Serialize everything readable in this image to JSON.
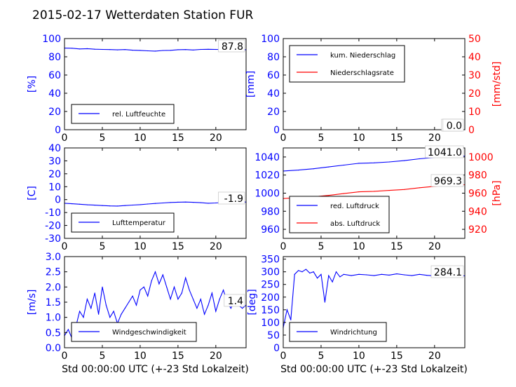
{
  "title": "2015-02-17 Wetterdaten Station FUR",
  "colors": {
    "left_axis": "#0000ff",
    "right_axis": "#ff0000",
    "line_blue": "#0000ff",
    "line_red": "#ff0000",
    "line_light": "#7777ff"
  },
  "chart_data": [
    {
      "id": "humidity",
      "type": "line",
      "ylabel": "[%]",
      "xlim": [
        0,
        24
      ],
      "ylim": [
        0,
        100
      ],
      "xticks": [
        0,
        5,
        10,
        15,
        20
      ],
      "yticks": [
        0,
        20,
        40,
        60,
        80,
        100
      ],
      "legend_position": "lower-left",
      "grid": false,
      "current_value": "87.8",
      "series": [
        {
          "name": "rel. Luftfeuchte",
          "color": "#0000ff",
          "x": [
            0,
            1,
            2,
            3,
            4,
            5,
            6,
            7,
            8,
            9,
            10,
            11,
            12,
            13,
            14,
            15,
            16,
            17,
            18,
            19,
            20,
            21,
            22,
            23,
            24
          ],
          "y": [
            89.5,
            89.4,
            88.6,
            88.9,
            88.3,
            88.1,
            87.9,
            87.6,
            87.9,
            87.2,
            87.0,
            86.5,
            86.2,
            86.9,
            87.1,
            87.8,
            87.9,
            87.5,
            88.1,
            88.2,
            88.1,
            87.9,
            87.8,
            87.8,
            87.8
          ]
        }
      ]
    },
    {
      "id": "precip",
      "type": "line",
      "ylabel": "[mm]",
      "y2label": "[mm/std]",
      "xlim": [
        0,
        24
      ],
      "ylim": [
        0,
        100
      ],
      "y2lim": [
        0,
        50
      ],
      "xticks": [
        0,
        5,
        10,
        15,
        20
      ],
      "yticks": [
        0,
        20,
        40,
        60,
        80,
        100
      ],
      "y2ticks": [
        0,
        10,
        20,
        30,
        40,
        50
      ],
      "legend_position": "upper-left",
      "grid": false,
      "current_value_left": "0.0",
      "current_value_right": "0.0",
      "series": [
        {
          "name": "kum. Niederschlag",
          "color": "#0000ff",
          "axis": "left",
          "x": [
            0,
            24
          ],
          "y": [
            0,
            0
          ]
        },
        {
          "name": "Niederschlagsrate",
          "color": "#ff0000",
          "axis": "right",
          "x": [
            0,
            24
          ],
          "y": [
            0,
            0
          ]
        }
      ]
    },
    {
      "id": "temperature",
      "type": "line",
      "ylabel": "[C]",
      "xlim": [
        0,
        24
      ],
      "ylim": [
        -30,
        40
      ],
      "xticks": [
        0,
        5,
        10,
        15,
        20
      ],
      "yticks": [
        -30,
        -20,
        -10,
        0,
        10,
        20,
        30,
        40
      ],
      "legend_position": "lower-left",
      "grid": false,
      "current_value": "-1.9",
      "series": [
        {
          "name": "Lufttemperatur",
          "color": "#0000ff",
          "x": [
            0,
            1,
            2,
            3,
            4,
            5,
            6,
            7,
            8,
            9,
            10,
            11,
            12,
            13,
            14,
            15,
            16,
            17,
            18,
            19,
            20,
            21,
            22,
            23,
            24
          ],
          "y": [
            -2.8,
            -3.2,
            -3.6,
            -4.0,
            -4.3,
            -4.6,
            -4.9,
            -5.0,
            -4.6,
            -4.2,
            -3.9,
            -3.4,
            -3.0,
            -2.6,
            -2.2,
            -2.0,
            -1.9,
            -2.1,
            -2.4,
            -2.8,
            -2.6,
            -2.2,
            -1.9,
            -1.9,
            -1.9
          ]
        }
      ]
    },
    {
      "id": "pressure",
      "type": "line",
      "y2label": "[hPa]",
      "xlim": [
        0,
        24
      ],
      "ylim": [
        950,
        1050
      ],
      "y2lim": [
        910,
        1010
      ],
      "xticks": [
        0,
        5,
        10,
        15,
        20
      ],
      "yticks": [
        960,
        980,
        1000,
        1020,
        1040
      ],
      "y2ticks": [
        920,
        940,
        960,
        980,
        1000
      ],
      "legend_position": "lower-left",
      "grid": false,
      "current_value_left": "1041.0",
      "current_value_right": "969.3",
      "series": [
        {
          "name": "red. Luftdruck",
          "color": "#0000ff",
          "axis": "left",
          "x": [
            0,
            2,
            4,
            6,
            8,
            10,
            12,
            14,
            16,
            18,
            20,
            22,
            24
          ],
          "y": [
            1024.5,
            1025.5,
            1027,
            1029,
            1031,
            1033,
            1033.5,
            1034.5,
            1036,
            1038,
            1039.5,
            1040.5,
            1041.0
          ]
        },
        {
          "name": "abs. Luftdruck",
          "color": "#ff0000",
          "axis": "right",
          "x": [
            0,
            2,
            4,
            6,
            8,
            10,
            12,
            14,
            16,
            18,
            20,
            22,
            24
          ],
          "y": [
            954,
            955,
            956,
            957.5,
            959.5,
            961.5,
            962,
            963,
            964,
            966,
            967.5,
            968.7,
            969.3
          ]
        }
      ]
    },
    {
      "id": "wind_speed",
      "type": "line",
      "ylabel": "[m/s]",
      "xlim": [
        0,
        24
      ],
      "ylim": [
        0,
        3.0
      ],
      "xticks": [
        0,
        5,
        10,
        15,
        20
      ],
      "yticks": [
        0.0,
        0.5,
        1.0,
        1.5,
        2.0,
        2.5,
        3.0
      ],
      "xlabel": "Std 00:00:00 UTC (+-23 Std Lokalzeit)",
      "legend_position": "lower-center",
      "grid": false,
      "current_value": "1.4",
      "series": [
        {
          "name": "Windgeschwindigkeit",
          "color": "#0000ff",
          "x": [
            0,
            0.5,
            1,
            1.5,
            2,
            2.5,
            3,
            3.5,
            4,
            4.5,
            5,
            5.5,
            6,
            6.5,
            7,
            7.5,
            8,
            8.5,
            9,
            9.5,
            10,
            10.5,
            11,
            11.5,
            12,
            12.5,
            13,
            13.5,
            14,
            14.5,
            15,
            15.5,
            16,
            16.5,
            17,
            17.5,
            18,
            18.5,
            19,
            19.5,
            20,
            20.5,
            21,
            21.5,
            22,
            22.5,
            23,
            23.5,
            24
          ],
          "y": [
            0.4,
            0.6,
            0.3,
            0.7,
            1.2,
            1.0,
            1.6,
            1.3,
            1.8,
            1.1,
            2.0,
            1.4,
            1.0,
            1.2,
            0.8,
            1.1,
            1.3,
            1.5,
            1.7,
            1.4,
            1.9,
            2.0,
            1.7,
            2.2,
            2.5,
            2.1,
            2.4,
            2.0,
            1.6,
            2.0,
            1.6,
            1.8,
            2.3,
            1.9,
            1.6,
            1.3,
            1.6,
            1.1,
            1.4,
            1.8,
            1.2,
            1.6,
            1.9,
            1.5,
            1.3,
            1.6,
            1.4,
            1.3,
            1.4
          ]
        }
      ]
    },
    {
      "id": "wind_dir",
      "type": "line",
      "ylabel": "[deg]",
      "xlim": [
        0,
        24
      ],
      "ylim": [
        0,
        360
      ],
      "xticks": [
        0,
        5,
        10,
        15,
        20
      ],
      "yticks": [
        0,
        50,
        100,
        150,
        200,
        250,
        300,
        350
      ],
      "xlabel": "Std 00:00:00 UTC (+-23 Std Lokalzeit)",
      "legend_position": "lower-left",
      "grid": false,
      "current_value": "284.1",
      "series": [
        {
          "name": "Windrichtung",
          "color": "#0000ff",
          "x": [
            0,
            0.5,
            1,
            1.5,
            2,
            2.5,
            3,
            3.5,
            4,
            4.5,
            5,
            5.5,
            6,
            6.5,
            7,
            7.5,
            8,
            9,
            10,
            11,
            12,
            13,
            14,
            15,
            16,
            17,
            18,
            19,
            20,
            21,
            22,
            23,
            24
          ],
          "y": [
            80,
            150,
            110,
            290,
            305,
            300,
            310,
            295,
            300,
            275,
            290,
            180,
            285,
            260,
            300,
            280,
            290,
            285,
            290,
            288,
            285,
            290,
            287,
            292,
            288,
            285,
            290,
            286,
            284,
            288,
            285,
            284,
            284.1
          ]
        }
      ]
    }
  ]
}
